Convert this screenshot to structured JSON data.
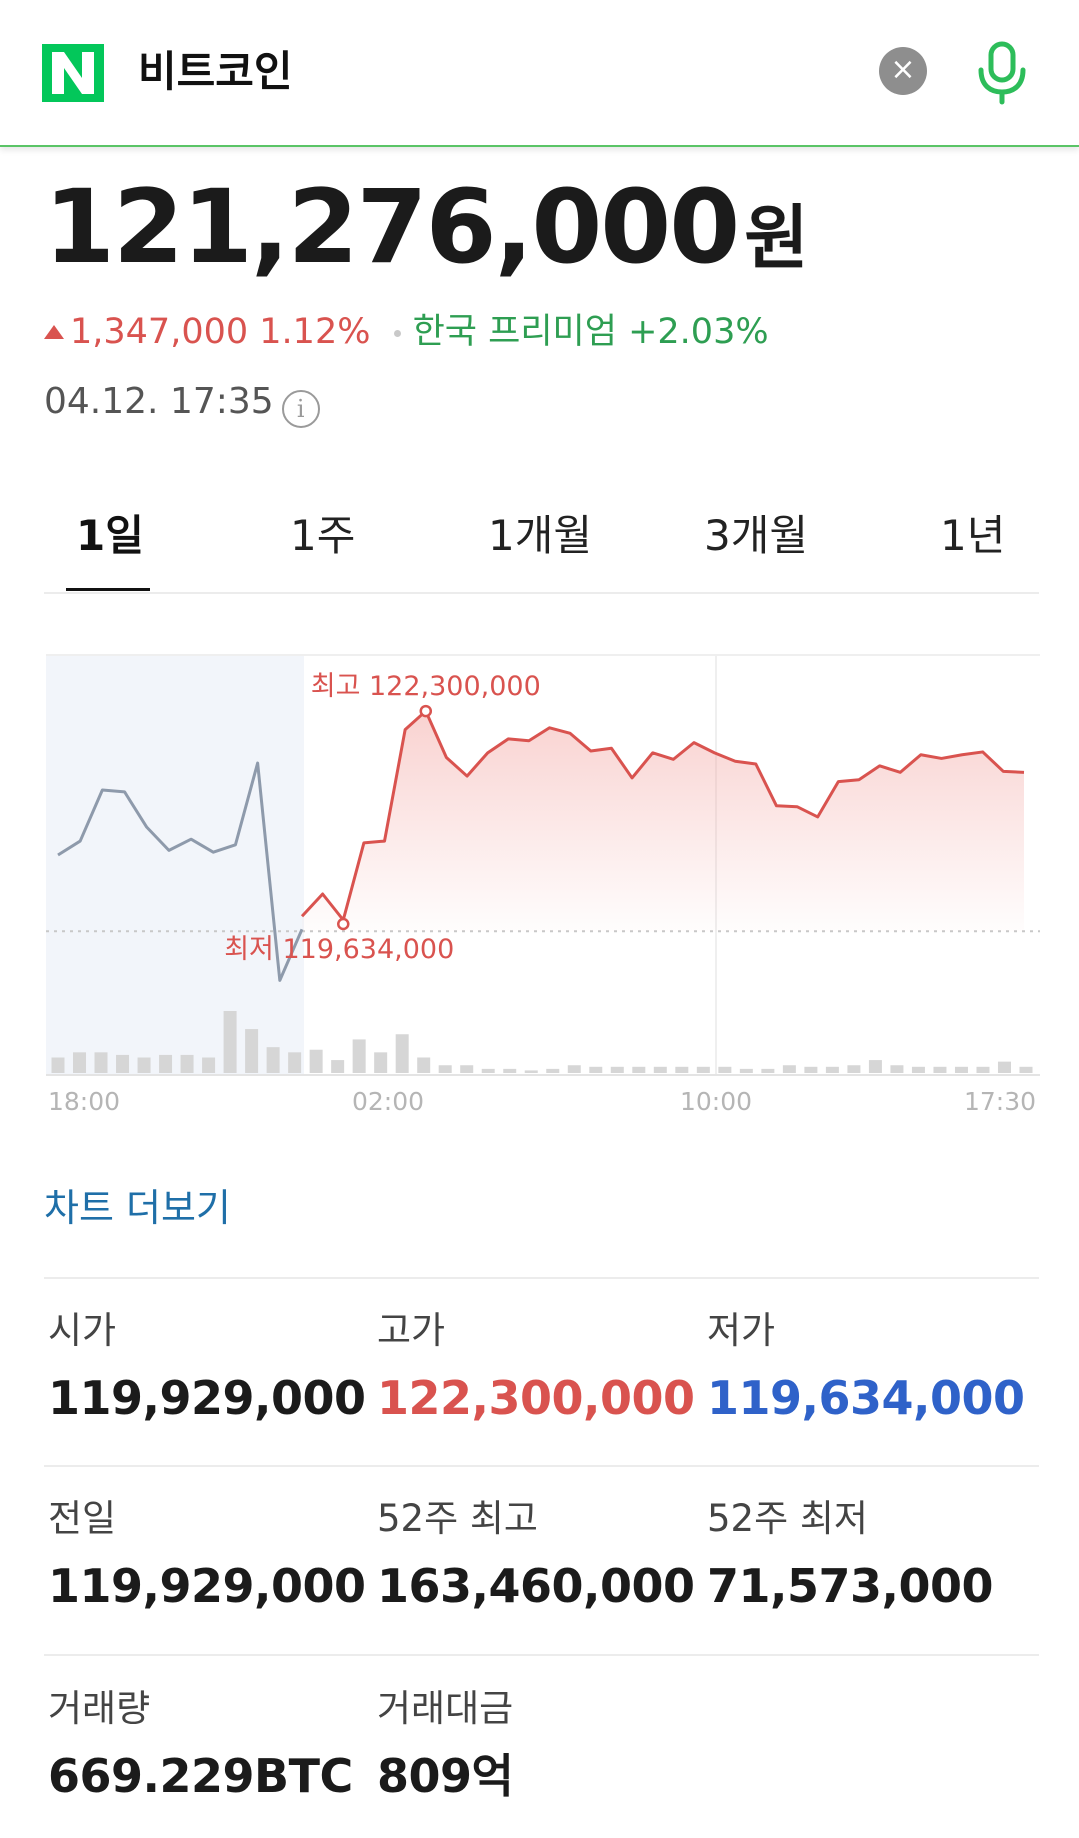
{
  "search": {
    "query": "비트코인"
  },
  "price": {
    "value": "121,276,000",
    "unit": "원"
  },
  "change": {
    "amount": "1,347,000",
    "percent": "1.12%",
    "premium_label": "한국 프리미엄",
    "premium_value": "+2.03%"
  },
  "timestamp": "04.12. 17:35",
  "tabs": [
    "1일",
    "1주",
    "1개월",
    "3개월",
    "1년"
  ],
  "active_tab": "1일",
  "chart_data": {
    "type": "line",
    "x_ticks": [
      "18:00",
      "02:00",
      "10:00",
      "17:30"
    ],
    "annotations": {
      "high": "최고 122,300,000",
      "low": "최저 119,634,000"
    },
    "high_value": 122300000,
    "low_value": 119634000,
    "previous_close": 119929000,
    "ylim": [
      119350000,
      122850000
    ],
    "pre_series": [
      120750000,
      120900000,
      121450000,
      121430000,
      121050000,
      120800000,
      120920000,
      120780000,
      120860000,
      121740000,
      119400000,
      119950000
    ],
    "series": [
      120090000,
      120330000,
      120050000,
      120880000,
      120900000,
      122100000,
      122300000,
      121800000,
      121600000,
      121850000,
      122000000,
      121980000,
      122120000,
      122060000,
      121870000,
      121900000,
      121580000,
      121850000,
      121780000,
      121960000,
      121850000,
      121760000,
      121730000,
      121280000,
      121270000,
      121160000,
      121540000,
      121560000,
      121710000,
      121640000,
      121830000,
      121790000,
      121830000,
      121860000,
      121650000,
      121640000
    ],
    "volume": [
      3,
      4,
      4,
      3.5,
      3,
      3.5,
      3.5,
      3,
      12,
      8.5,
      5,
      4,
      4.5,
      2.5,
      6.5,
      4,
      7.5,
      3,
      1.5,
      1.5,
      0.8,
      0.8,
      0.5,
      0.8,
      1.5,
      1.2,
      1.2,
      1.2,
      1.2,
      1.2,
      1.2,
      1.2,
      0.8,
      0.8,
      1.5,
      1.2,
      1.2,
      1.5,
      2.5,
      1.5,
      1.2,
      1.2,
      1.2,
      1.2,
      2.2,
      1.2
    ]
  },
  "chart_more_label": "차트 더보기",
  "stats": [
    {
      "label": "시가",
      "value": "119,929,000"
    },
    {
      "label": "고가",
      "value": "122,300,000"
    },
    {
      "label": "저가",
      "value": "119,634,000"
    },
    {
      "label": "전일",
      "value": "119,929,000"
    },
    {
      "label": "52주 최고",
      "value": "163,460,000"
    },
    {
      "label": "52주 최저",
      "value": "71,573,000"
    },
    {
      "label": "거래량",
      "value": "669.229BTC"
    },
    {
      "label": "거래대금",
      "value": "809억"
    }
  ],
  "colors": {
    "up": "#d9534f",
    "down": "#2f62c9",
    "premium": "#2e9e52",
    "brand": "#03c75a",
    "link": "#1f6fa8"
  }
}
